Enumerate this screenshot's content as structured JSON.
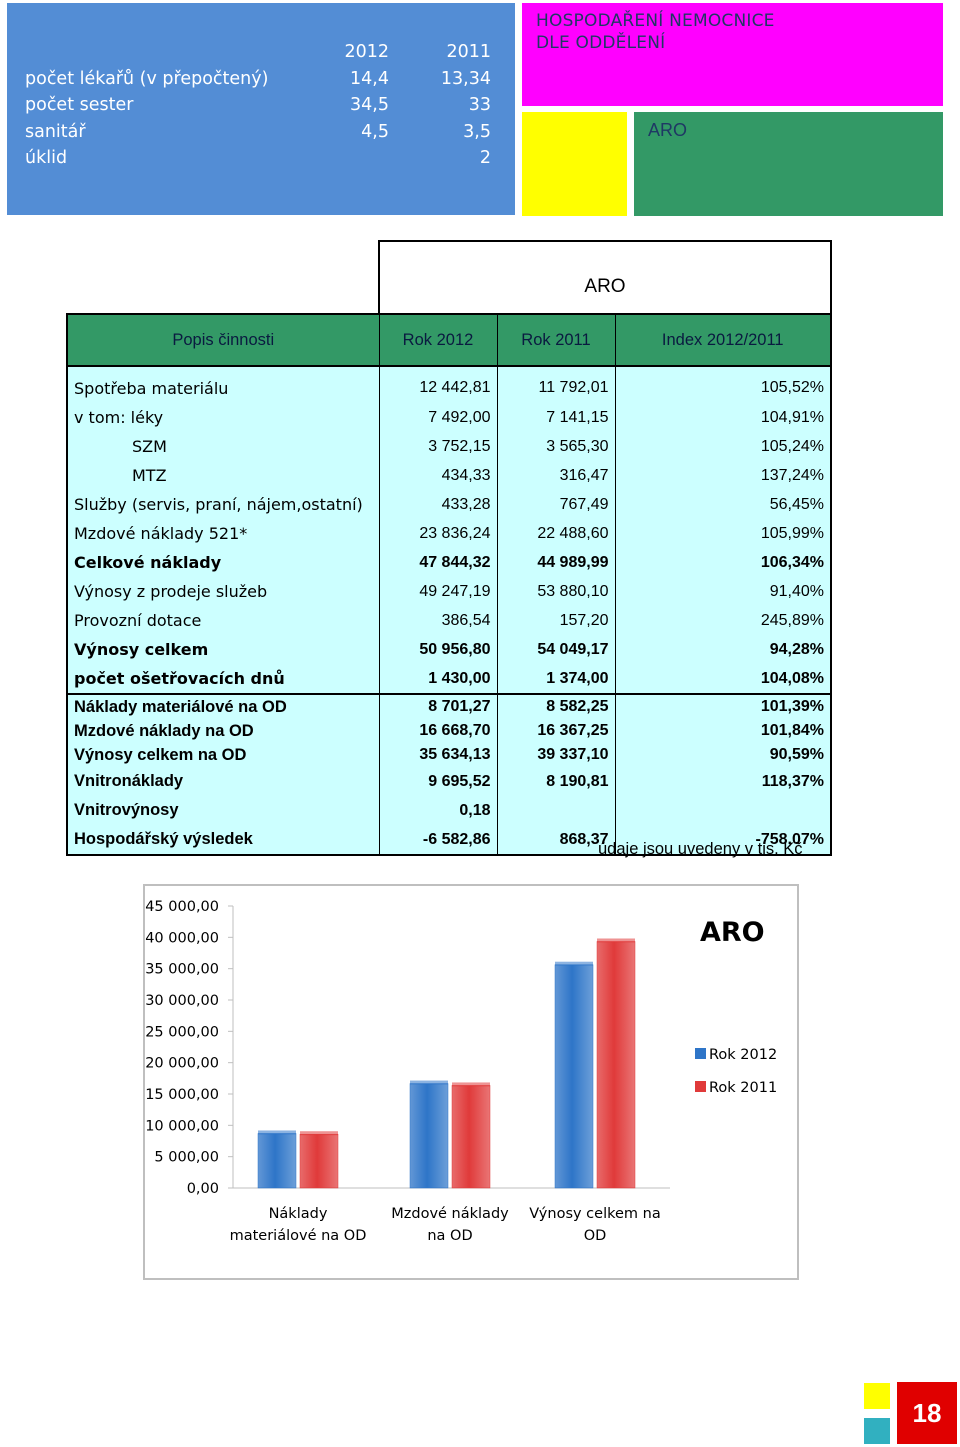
{
  "staff": {
    "years": [
      "2012",
      "2011"
    ],
    "rows": [
      {
        "label": "počet lékařů (v přepočtený)",
        "v2012": "14,4",
        "v2011": "13,34"
      },
      {
        "label": "počet sester",
        "v2012": "34,5",
        "v2011": "33"
      },
      {
        "label": "sanitář",
        "v2012": "4,5",
        "v2011": "3,5"
      },
      {
        "label": "úklid",
        "v2012": "",
        "v2011": "2"
      }
    ]
  },
  "header": {
    "title_line1": "HOSPODAŘENÍ NEMOCNICE",
    "title_line2": "DLE ODDĚLENÍ",
    "department": "ARO"
  },
  "table": {
    "department": "ARO",
    "columns": [
      "Popis činnosti",
      "Rok 2012",
      "Rok 2011",
      "Index 2012/2011"
    ],
    "rows": [
      {
        "label": "Spotřeba materiálu",
        "r2012": "12 442,81",
        "r2011": "11 792,01",
        "index": "105,52%"
      },
      {
        "label": "v tom: léky",
        "r2012": "7 492,00",
        "r2011": "7 141,15",
        "index": "104,91%"
      },
      {
        "label": "SZM",
        "r2012": "3 752,15",
        "r2011": "3 565,30",
        "index": "105,24%"
      },
      {
        "label": "MTZ",
        "r2012": "434,33",
        "r2011": "316,47",
        "index": "137,24%"
      },
      {
        "label": "Služby (servis, praní, nájem,ostatní)",
        "r2012": "433,28",
        "r2011": "767,49",
        "index": "56,45%"
      },
      {
        "label": "Mzdové náklady 521*",
        "r2012": "23 836,24",
        "r2011": "22 488,60",
        "index": "105,99%"
      },
      {
        "label": "Celkové  náklady",
        "r2012": "47 844,32",
        "r2011": "44 989,99",
        "index": "106,34%"
      },
      {
        "label": "Výnosy z prodeje služeb",
        "r2012": "49 247,19",
        "r2011": "53 880,10",
        "index": "91,40%"
      },
      {
        "label": "Provozní dotace",
        "r2012": "386,54",
        "r2011": "157,20",
        "index": "245,89%"
      },
      {
        "label": "Výnosy celkem",
        "r2012": "50 956,80",
        "r2011": "54 049,17",
        "index": "94,28%"
      },
      {
        "label": "počet ošetřovacích dnů",
        "r2012": "1 430,00",
        "r2011": "1 374,00",
        "index": "104,08%"
      },
      {
        "label": "Náklady materiálové na OD",
        "r2012": "8 701,27",
        "r2011": "8 582,25",
        "index": "101,39%"
      },
      {
        "label": "Mzdové náklady na OD",
        "r2012": "16 668,70",
        "r2011": "16 367,25",
        "index": "101,84%"
      },
      {
        "label": "Výnosy celkem na OD",
        "r2012": "35 634,13",
        "r2011": "39 337,10",
        "index": "90,59%"
      },
      {
        "label": "Vnitronáklady",
        "r2012": "9 695,52",
        "r2011": "8 190,81",
        "index": "118,37%"
      },
      {
        "label": "Vnitrovýnosy",
        "r2012": "0,18",
        "r2011": "",
        "index": ""
      },
      {
        "label": "Hospodářský výsledek",
        "r2012": "-6 582,86",
        "r2011": "868,37",
        "index": "-758,07%"
      }
    ],
    "note": "údaje jsou uvedeny v tis. Kč"
  },
  "chart_data": {
    "type": "bar",
    "title": "ARO",
    "categories": [
      [
        "Náklady",
        "materiálové na OD"
      ],
      [
        "Mzdové náklady",
        "na OD"
      ],
      [
        "Výnosy celkem na",
        "OD"
      ]
    ],
    "series": [
      {
        "name": "Rok 2012",
        "values": [
          8701.27,
          16668.7,
          35634.13
        ],
        "color": "#2e75c8"
      },
      {
        "name": "Rok 2011",
        "values": [
          8582.25,
          16367.25,
          39337.1
        ],
        "color": "#e03a3a"
      }
    ],
    "yticks": [
      "0,00",
      "5 000,00",
      "10 000,00",
      "15 000,00",
      "20 000,00",
      "25 000,00",
      "30 000,00",
      "35 000,00",
      "40 000,00",
      "45 000,00"
    ],
    "ylim": [
      0,
      45000
    ],
    "grid": false,
    "legend": "right"
  },
  "footer": {
    "page": "18"
  },
  "colors": {
    "blue": "#538dd5",
    "magenta": "#ff00ff",
    "yellow": "#ffff00",
    "green": "#339966",
    "table_fill": "#ccffff",
    "page_badge": "#e00000"
  }
}
